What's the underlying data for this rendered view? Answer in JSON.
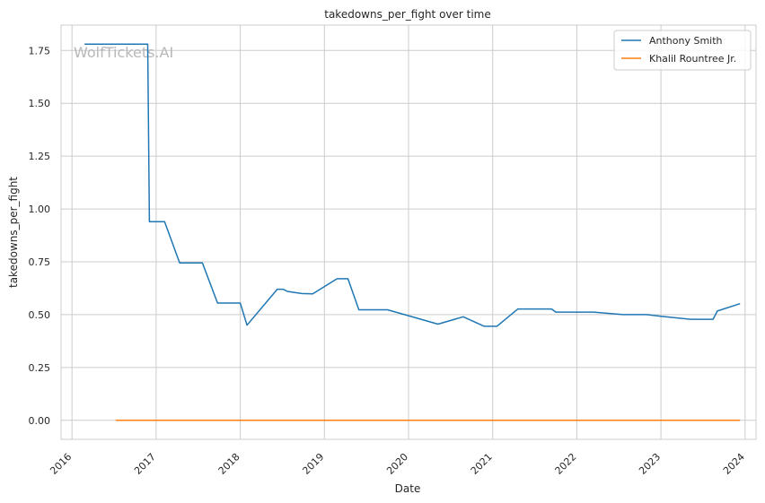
{
  "chart_data": {
    "type": "line",
    "title": "takedowns_per_fight over time",
    "xlabel": "Date",
    "ylabel": "takedowns_per_fight",
    "watermark": "WolfTickets.AI",
    "xlim": [
      2015.87,
      2024.13
    ],
    "ylim": [
      -0.09,
      1.87
    ],
    "x_ticks": [
      2016,
      2017,
      2018,
      2019,
      2020,
      2021,
      2022,
      2023,
      2024
    ],
    "x_tick_labels": [
      "2016",
      "2017",
      "2018",
      "2019",
      "2020",
      "2021",
      "2022",
      "2023",
      "2024"
    ],
    "y_ticks": [
      0.0,
      0.25,
      0.5,
      0.75,
      1.0,
      1.25,
      1.5,
      1.75
    ],
    "y_tick_labels": [
      "0.00",
      "0.25",
      "0.50",
      "0.75",
      "1.00",
      "1.25",
      "1.50",
      "1.75"
    ],
    "grid": true,
    "legend_position": "top-right",
    "series": [
      {
        "name": "Anthony Smith",
        "color": "#1f77b4",
        "points": [
          [
            2016.15,
            1.78
          ],
          [
            2016.9,
            1.78
          ],
          [
            2016.92,
            0.94
          ],
          [
            2017.1,
            0.94
          ],
          [
            2017.28,
            0.745
          ],
          [
            2017.55,
            0.745
          ],
          [
            2017.73,
            0.555
          ],
          [
            2018.0,
            0.555
          ],
          [
            2018.08,
            0.45
          ],
          [
            2018.44,
            0.62
          ],
          [
            2018.51,
            0.62
          ],
          [
            2018.56,
            0.61
          ],
          [
            2018.73,
            0.6
          ],
          [
            2018.86,
            0.598
          ],
          [
            2019.15,
            0.67
          ],
          [
            2019.28,
            0.67
          ],
          [
            2019.41,
            0.523
          ],
          [
            2019.75,
            0.523
          ],
          [
            2020.35,
            0.455
          ],
          [
            2020.65,
            0.49
          ],
          [
            2020.9,
            0.445
          ],
          [
            2021.05,
            0.445
          ],
          [
            2021.3,
            0.527
          ],
          [
            2021.7,
            0.527
          ],
          [
            2021.75,
            0.512
          ],
          [
            2022.2,
            0.512
          ],
          [
            2022.55,
            0.5
          ],
          [
            2022.83,
            0.5
          ],
          [
            2023.0,
            0.492
          ],
          [
            2023.35,
            0.478
          ],
          [
            2023.62,
            0.478
          ],
          [
            2023.67,
            0.517
          ],
          [
            2023.94,
            0.552
          ]
        ]
      },
      {
        "name": "Khalil Rountree Jr.",
        "color": "#ff7f0e",
        "points": [
          [
            2016.52,
            0.0
          ],
          [
            2023.94,
            0.0
          ]
        ]
      }
    ]
  }
}
